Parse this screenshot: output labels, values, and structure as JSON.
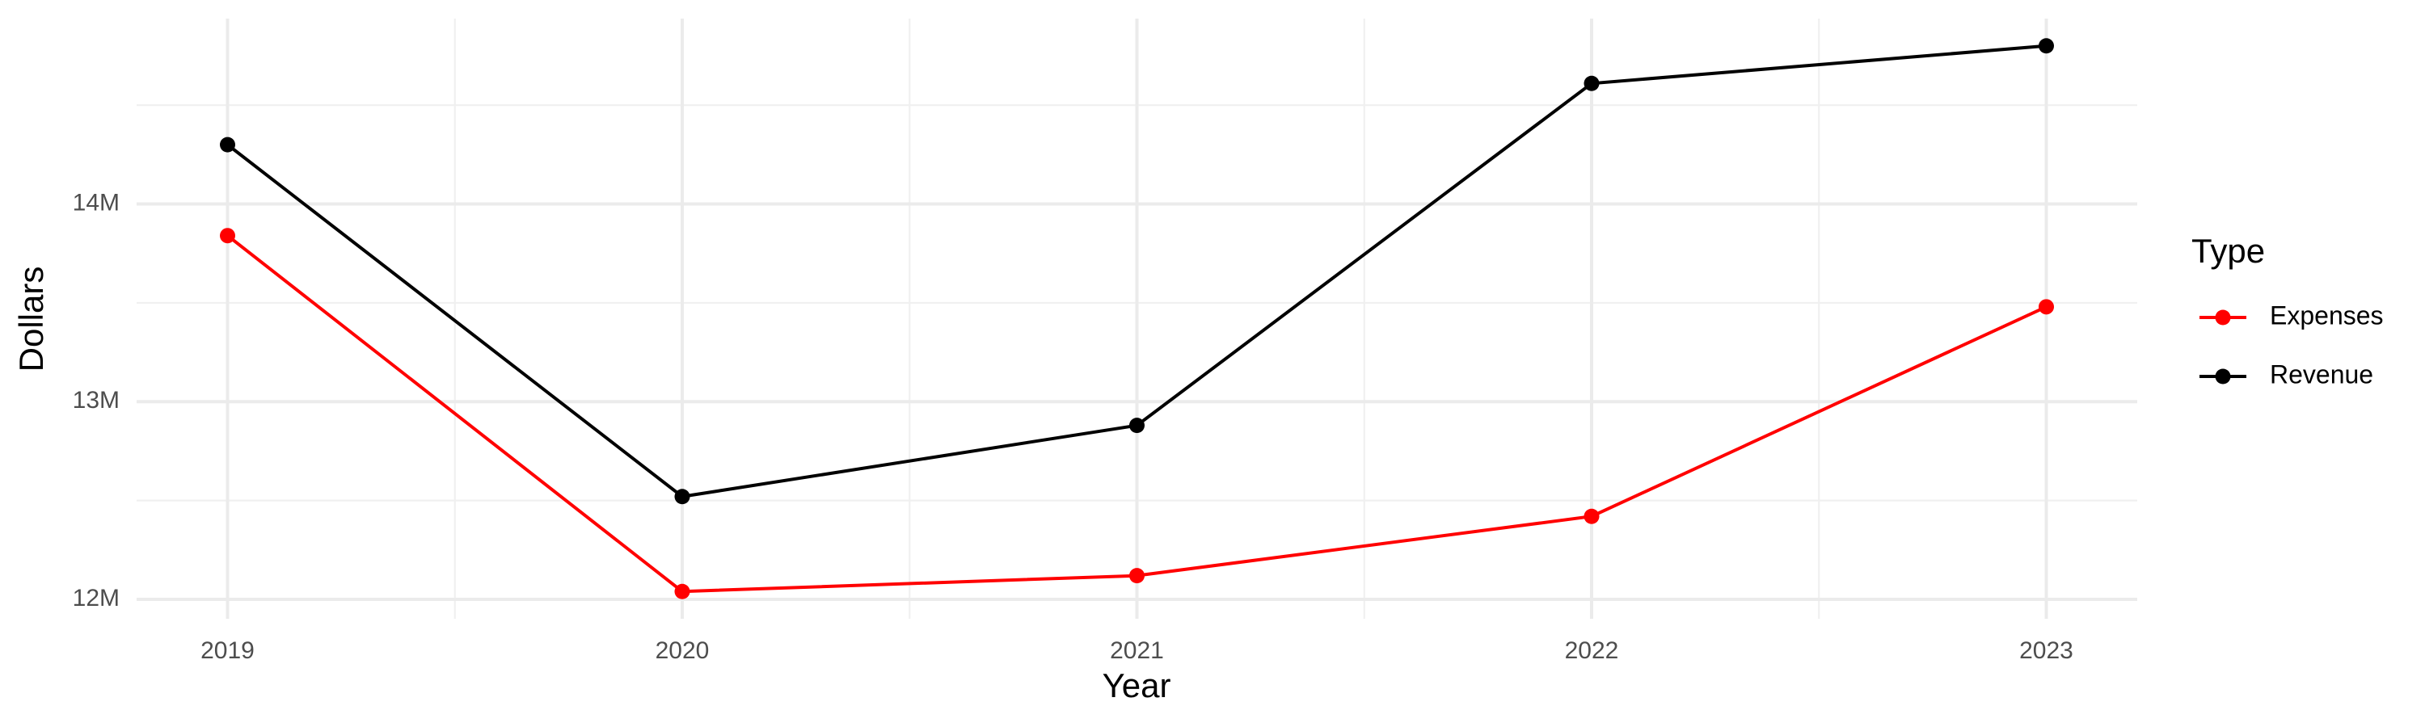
{
  "chart_data": {
    "type": "line",
    "x_label": "Year",
    "y_label": "Dollars",
    "legend_title": "Type",
    "x": [
      2019,
      2020,
      2021,
      2022,
      2023
    ],
    "series": [
      {
        "name": "Expenses",
        "color": "#ff0000",
        "values": [
          13840000,
          12040000,
          12120000,
          12420000,
          13480000
        ]
      },
      {
        "name": "Revenue",
        "color": "#000000",
        "values": [
          14300000,
          12520000,
          12880000,
          14610000,
          14800000
        ]
      }
    ],
    "xlim": [
      2018.8,
      2023.2
    ],
    "xticks": [
      2019,
      2020,
      2021,
      2022,
      2023
    ],
    "x_minor_ticks": [
      2019.5,
      2020.5,
      2021.5,
      2022.5
    ],
    "ylim": [
      11902000,
      14938000
    ],
    "yticks": [
      {
        "value": 12000000,
        "label": "12M"
      },
      {
        "value": 13000000,
        "label": "13M"
      },
      {
        "value": 14000000,
        "label": "14M"
      }
    ],
    "y_minor_ticks": [
      12500000,
      13500000,
      14500000
    ],
    "grid": true,
    "legend_position": "right"
  }
}
